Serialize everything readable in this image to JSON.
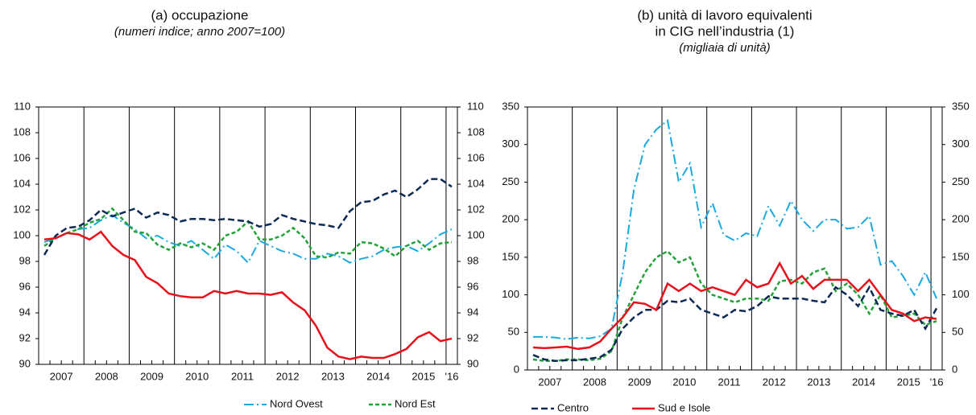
{
  "chart_data": [
    {
      "type": "line",
      "title": [
        "(a) occupazione"
      ],
      "subtitle": "(numeri indice; anno 2007=100)",
      "categories": [
        null,
        "2007",
        null,
        null,
        null,
        "2008",
        null,
        null,
        null,
        "2009",
        null,
        null,
        null,
        "2010",
        null,
        null,
        null,
        "2011",
        null,
        null,
        null,
        "2012",
        null,
        null,
        null,
        "2013",
        null,
        null,
        null,
        "2014",
        null,
        null,
        null,
        "2015",
        null,
        null,
        "'16"
      ],
      "ylim": [
        90,
        110
      ],
      "yticks": [
        90,
        92,
        94,
        96,
        98,
        100,
        102,
        104,
        106,
        108,
        110
      ],
      "y2lim": [
        90,
        110
      ],
      "y2ticks": [
        90,
        92,
        94,
        96,
        98,
        100,
        102,
        104,
        106,
        108,
        110
      ],
      "series": [
        {
          "name": "Nord Ovest",
          "color": "#1ba9e0",
          "values": [
            99.5,
            99.8,
            100.2,
            100.5,
            100.6,
            101.2,
            101.6,
            101,
            100.5,
            99.8,
            100,
            99.5,
            99.2,
            99.6,
            98.9,
            98.2,
            99.3,
            98.8,
            97.9,
            99.6,
            99.2,
            98.8,
            98.6,
            98.2,
            98.2,
            98.6,
            98.4,
            97.9,
            98.2,
            98.4,
            98.9,
            99.1,
            99.2,
            98.8,
            99.4,
            100.1,
            100.5
          ]
        },
        {
          "name": "Nord Est",
          "color": "#22a33a",
          "values": [
            99.2,
            99.8,
            100.2,
            100.5,
            101,
            101.3,
            102.1,
            101.2,
            100.3,
            100.2,
            99.3,
            98.9,
            99.4,
            99.1,
            99.4,
            98.9,
            100,
            100.3,
            101.1,
            99.7,
            99.7,
            100,
            100.6,
            99.8,
            98.4,
            98.3,
            98.7,
            98.6,
            99.5,
            99.4,
            99,
            98.4,
            99.2,
            99.6,
            98.9,
            99.4,
            99.5
          ]
        },
        {
          "name": "Centro",
          "color": "#0c2a55",
          "values": [
            98.5,
            100,
            100.6,
            100.7,
            101.2,
            102,
            101.5,
            101.8,
            102.1,
            101.4,
            101.8,
            101.6,
            101.1,
            101.3,
            101.3,
            101.2,
            101.3,
            101.2,
            101.1,
            100.7,
            100.9,
            101.6,
            101.3,
            101.1,
            100.9,
            100.8,
            100.6,
            101.9,
            102.6,
            102.7,
            103.2,
            103.5,
            103,
            103.6,
            104.4,
            104.4,
            103.8
          ]
        },
        {
          "name": "Sud e Isole",
          "color": "#e8101a",
          "values": [
            99.7,
            99.8,
            100.2,
            100.1,
            99.7,
            100.3,
            99.2,
            98.5,
            98.1,
            96.8,
            96.3,
            95.5,
            95.3,
            95.2,
            95.2,
            95.7,
            95.5,
            95.7,
            95.5,
            95.5,
            95.4,
            95.6,
            94.8,
            94.2,
            93,
            91.3,
            90.6,
            90.4,
            90.6,
            90.5,
            90.5,
            90.8,
            91.2,
            92.1,
            92.5,
            91.8,
            92
          ]
        }
      ]
    },
    {
      "type": "line",
      "title": [
        "(b) unità di lavoro equivalenti",
        "in CIG nell’industria (1)"
      ],
      "subtitle": "(migliaia di unità)",
      "categories": [
        null,
        "2007",
        null,
        null,
        null,
        "2008",
        null,
        null,
        null,
        "2009",
        null,
        null,
        null,
        "2010",
        null,
        null,
        null,
        "2011",
        null,
        null,
        null,
        "2012",
        null,
        null,
        null,
        "2013",
        null,
        null,
        null,
        "2014",
        null,
        null,
        null,
        "2015",
        null,
        null,
        "'16"
      ],
      "ylim": [
        0,
        350
      ],
      "yticks": [
        0,
        50,
        100,
        150,
        200,
        250,
        300,
        350
      ],
      "y2lim": [
        0,
        350
      ],
      "y2ticks": [
        0,
        50,
        100,
        150,
        200,
        250,
        300,
        350
      ],
      "series": [
        {
          "name": "Nord Ovest",
          "color": "#1ba9e0",
          "values": [
            44,
            44,
            43,
            41,
            43,
            42,
            45,
            55,
            130,
            240,
            300,
            320,
            332,
            250,
            275,
            190,
            222,
            180,
            172,
            182,
            178,
            218,
            192,
            225,
            200,
            185,
            200,
            200,
            188,
            190,
            205,
            140,
            145,
            125,
            100,
            130,
            95
          ]
        },
        {
          "name": "Nord Est",
          "color": "#22a33a",
          "values": [
            14,
            12,
            12,
            14,
            14,
            13,
            15,
            25,
            70,
            100,
            130,
            150,
            158,
            143,
            150,
            115,
            100,
            95,
            90,
            95,
            95,
            92,
            118,
            120,
            115,
            130,
            135,
            105,
            115,
            100,
            75,
            100,
            70,
            72,
            75,
            60,
            65
          ]
        },
        {
          "name": "Centro",
          "color": "#0c2a55",
          "values": [
            20,
            14,
            12,
            13,
            13,
            15,
            17,
            27,
            55,
            70,
            80,
            80,
            92,
            90,
            95,
            80,
            75,
            70,
            80,
            78,
            85,
            98,
            95,
            95,
            95,
            92,
            90,
            110,
            100,
            85,
            110,
            80,
            75,
            72,
            80,
            55,
            82
          ]
        },
        {
          "name": "Sud e Isole",
          "color": "#e8101a",
          "values": [
            30,
            29,
            30,
            31,
            28,
            30,
            38,
            55,
            70,
            90,
            88,
            80,
            115,
            105,
            115,
            105,
            110,
            105,
            100,
            120,
            110,
            115,
            142,
            115,
            125,
            108,
            120,
            120,
            120,
            105,
            120,
            100,
            80,
            75,
            65,
            70,
            68
          ]
        }
      ]
    }
  ]
}
